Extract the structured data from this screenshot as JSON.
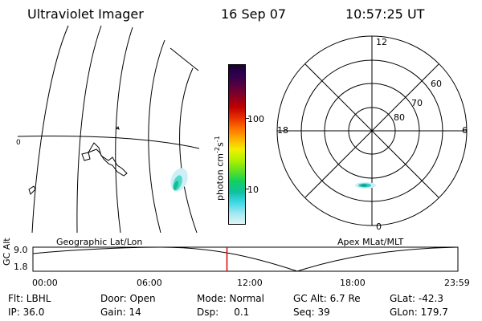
{
  "header": {
    "instrument": "Ultraviolet Imager",
    "date": "16 Sep 07",
    "time": "10:57:25 UT"
  },
  "geo_panel": {
    "label": "Geographic Lat/Lon",
    "equator_label": "0"
  },
  "colorbar": {
    "unit_label": "photon cm",
    "unit_sup1": "-2",
    "unit_mid": "s",
    "unit_sup2": "-1",
    "ticks": [
      "100",
      "10"
    ],
    "colors": [
      "#1a0033",
      "#300050",
      "#5a0040",
      "#8a0020",
      "#c00000",
      "#e83000",
      "#ff7000",
      "#ffb000",
      "#f0f000",
      "#b0f000",
      "#60e020",
      "#10d060",
      "#10c0a0",
      "#40d8e8",
      "#a0e8f0",
      "#e0f4f8"
    ]
  },
  "polar_panel": {
    "label": "Apex MLat/MLT",
    "mlt_labels": {
      "top": "12",
      "left": "18",
      "right": "6",
      "bottom": "0"
    },
    "lat_labels": [
      "60",
      "70",
      "80"
    ]
  },
  "timeline": {
    "axis_title": "GC Alt",
    "y_labels": [
      "9.0",
      "1.8"
    ],
    "x_labels": [
      "00:00",
      "06:00",
      "12:00",
      "18:00",
      "23:59"
    ],
    "marker_time": "10:57"
  },
  "info": {
    "filter": "Flt: LBHL",
    "ip": "IP: 36.0",
    "door": "Door: Open",
    "gain": "Gain: 14",
    "mode": "Mode: Normal",
    "dsp": "Dsp:     0.1",
    "gc_alt": "GC Alt: 6.7 Re",
    "seq": "Seq: 39",
    "glat": "GLat: -42.3",
    "glon": "GLon: 179.7"
  }
}
